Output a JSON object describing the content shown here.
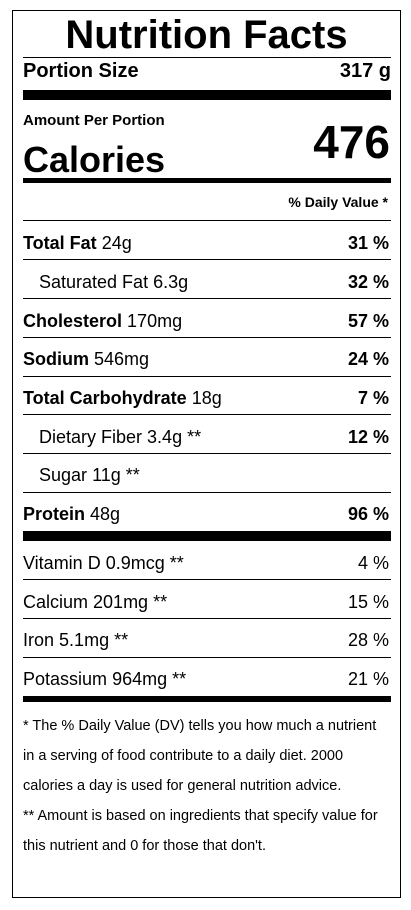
{
  "label": {
    "title": "Nutrition Facts",
    "portion": {
      "label": "Portion Size",
      "value": "317 g"
    },
    "amount_per_portion": "Amount Per Portion",
    "calories": {
      "label": "Calories",
      "value": "476"
    },
    "daily_value_header": "% Daily Value *",
    "nutrients": [
      {
        "name": "Total Fat",
        "amount": "24g",
        "dv": "31 %"
      },
      {
        "name": "Saturated Fat",
        "amount": "6.3g",
        "dv": "32 %"
      },
      {
        "name": "Cholesterol",
        "amount": "170mg",
        "dv": "57 %"
      },
      {
        "name": "Sodium",
        "amount": "546mg",
        "dv": "24 %"
      },
      {
        "name": "Total Carbohydrate",
        "amount": "18g",
        "dv": "7 %"
      },
      {
        "name": "Dietary Fiber",
        "amount": "3.4g **",
        "dv": "12 %"
      },
      {
        "name": "Sugar",
        "amount": "11g **",
        "dv": ""
      },
      {
        "name": "Protein",
        "amount": "48g",
        "dv": "96 %"
      }
    ],
    "vitamins": [
      {
        "name": "Vitamin D",
        "amount": "0.9mcg **",
        "dv": "4 %"
      },
      {
        "name": "Calcium",
        "amount": "201mg **",
        "dv": "15 %"
      },
      {
        "name": "Iron",
        "amount": "5.1mg **",
        "dv": "28 %"
      },
      {
        "name": "Potassium",
        "amount": "964mg **",
        "dv": "21 %"
      }
    ],
    "footnotes": [
      "* The % Daily Value (DV) tells you how much a nutrient in a serving of food contribute to a daily diet. 2000 calories a day is used for general nutrition advice.",
      "** Amount is based on ingredients that specify value for this nutrient and 0 for those that don't."
    ]
  }
}
